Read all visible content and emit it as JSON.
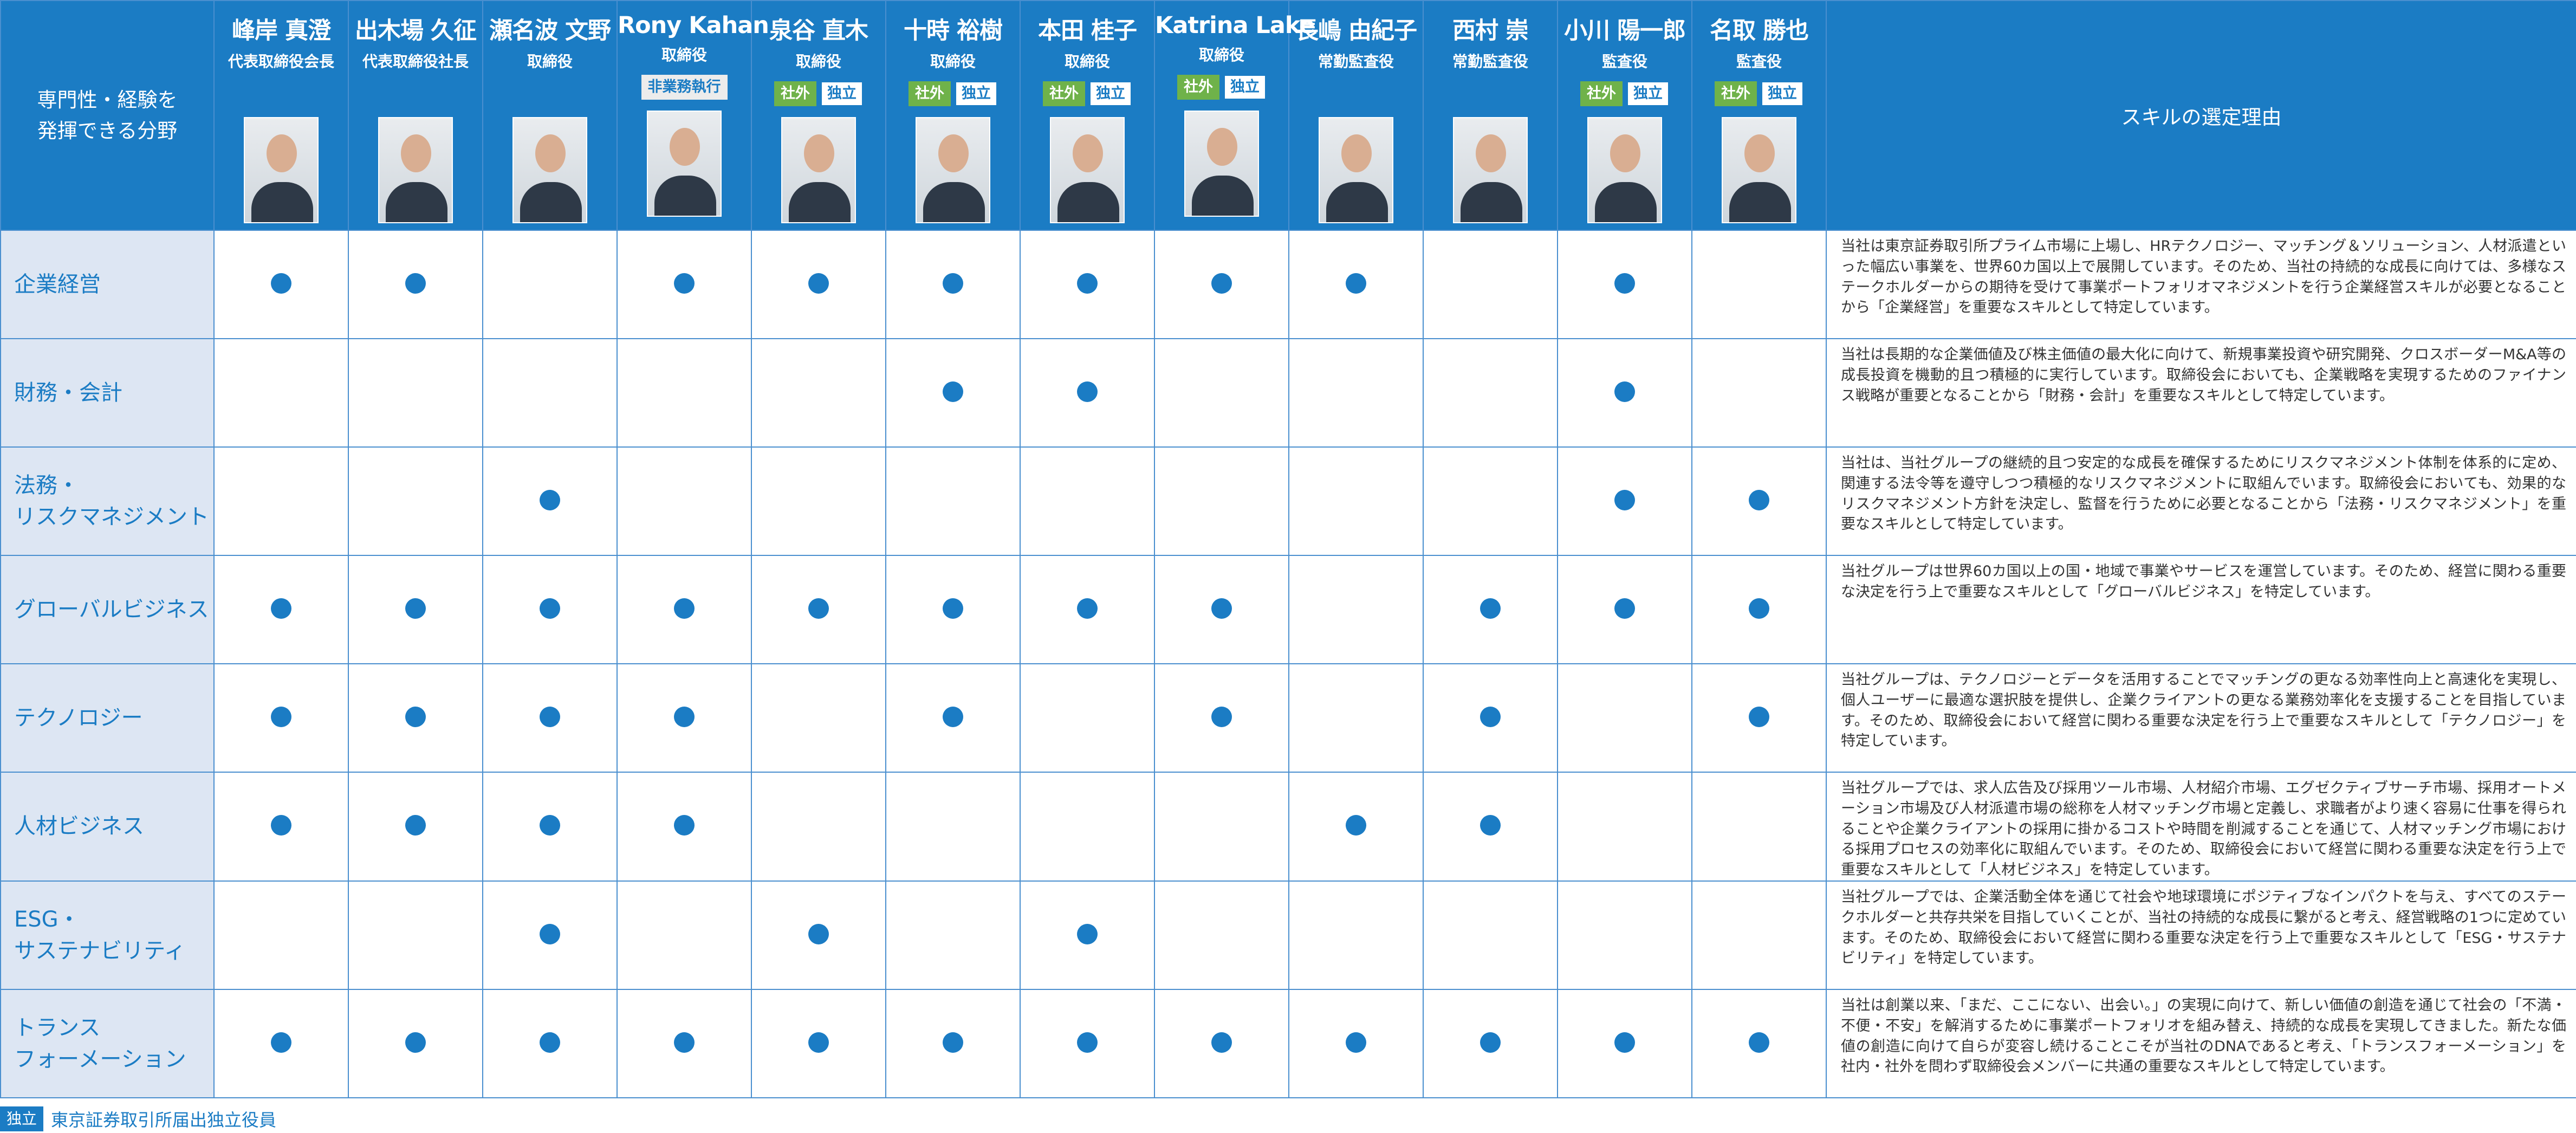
{
  "corner_header": "専門性・経験を\n発揮できる分野",
  "reason_header": "スキルの選定理由",
  "badge_labels": {
    "outside": "社外",
    "independent": "独立",
    "non_executive": "非業務執行"
  },
  "members": [
    {
      "name": "峰岸 真澄",
      "role": "代表取締役会長",
      "badges": []
    },
    {
      "name": "出木場 久征",
      "role": "代表取締役社長",
      "badges": []
    },
    {
      "name": "瀬名波 文野",
      "role": "取締役",
      "badges": []
    },
    {
      "name": "Rony Kahan",
      "role": "取締役",
      "badges": [
        "non_executive"
      ]
    },
    {
      "name": "泉谷 直木",
      "role": "取締役",
      "badges": [
        "outside",
        "independent"
      ]
    },
    {
      "name": "十時 裕樹",
      "role": "取締役",
      "badges": [
        "outside",
        "independent"
      ]
    },
    {
      "name": "本田 桂子",
      "role": "取締役",
      "badges": [
        "outside",
        "independent"
      ]
    },
    {
      "name": "Katrina Lake",
      "role": "取締役",
      "badges": [
        "outside",
        "independent"
      ]
    },
    {
      "name": "長嶋 由紀子",
      "role": "常勤監査役",
      "badges": []
    },
    {
      "name": "西村 崇",
      "role": "常勤監査役",
      "badges": []
    },
    {
      "name": "小川 陽一郎",
      "role": "監査役",
      "badges": [
        "outside",
        "independent"
      ]
    },
    {
      "name": "名取 勝也",
      "role": "監査役",
      "badges": [
        "outside",
        "independent"
      ]
    }
  ],
  "skills": [
    {
      "label": "企業経営",
      "marks": [
        1,
        1,
        0,
        1,
        1,
        1,
        1,
        1,
        1,
        0,
        1,
        0
      ],
      "reason": "当社は東京証券取引所プライム市場に上場し、HRテクノロジー、マッチング＆ソリューション、人材派遣といった幅広い事業を、世界60カ国以上で展開しています。そのため、当社の持続的な成長に向けては、多様なステークホルダーからの期待を受けて事業ポートフォリオマネジメントを行う企業経営スキルが必要となることから「企業経営」を重要なスキルとして特定しています。"
    },
    {
      "label": "財務・会計",
      "marks": [
        0,
        0,
        0,
        0,
        0,
        1,
        1,
        0,
        0,
        0,
        1,
        0
      ],
      "reason": "当社は長期的な企業価値及び株主価値の最大化に向けて、新規事業投資や研究開発、クロスボーダーM&A等の成長投資を機動的且つ積極的に実行しています。取締役会においても、企業戦略を実現するためのファイナンス戦略が重要となることから「財務・会計」を重要なスキルとして特定しています。"
    },
    {
      "label": "法務・\nリスクマネジメント",
      "marks": [
        0,
        0,
        1,
        0,
        0,
        0,
        0,
        0,
        0,
        0,
        1,
        1
      ],
      "reason": "当社は、当社グループの継続的且つ安定的な成長を確保するためにリスクマネジメント体制を体系的に定め、関連する法令等を遵守しつつ積極的なリスクマネジメントに取組んでいます。取締役会においても、効果的なリスクマネジメント方針を決定し、監督を行うために必要となることから「法務・リスクマネジメント」を重要なスキルとして特定しています。"
    },
    {
      "label": "グローバルビジネス",
      "marks": [
        1,
        1,
        1,
        1,
        1,
        1,
        1,
        1,
        0,
        1,
        1,
        1
      ],
      "reason": "当社グループは世界60カ国以上の国・地域で事業やサービスを運営しています。そのため、経営に関わる重要な決定を行う上で重要なスキルとして「グローバルビジネス」を特定しています。"
    },
    {
      "label": "テクノロジー",
      "marks": [
        1,
        1,
        1,
        1,
        0,
        1,
        0,
        1,
        0,
        1,
        0,
        1
      ],
      "reason": "当社グループは、テクノロジーとデータを活用することでマッチングの更なる効率性向上と高速化を実現し、個人ユーザーに最適な選択肢を提供し、企業クライアントの更なる業務効率化を支援することを目指しています。そのため、取締役会において経営に関わる重要な決定を行う上で重要なスキルとして「テクノロジー」を特定しています。"
    },
    {
      "label": "人材ビジネス",
      "marks": [
        1,
        1,
        1,
        1,
        0,
        0,
        0,
        0,
        1,
        1,
        0,
        0
      ],
      "reason": "当社グループでは、求人広告及び採用ツール市場、人材紹介市場、エグゼクティブサーチ市場、採用オートメーション市場及び人材派遣市場の総称を人材マッチング市場と定義し、求職者がより速く容易に仕事を得られることや企業クライアントの採用に掛かるコストや時間を削減することを通じて、人材マッチング市場における採用プロセスの効率化に取組んでいます。そのため、取締役会において経営に関わる重要な決定を行う上で重要なスキルとして「人材ビジネス」を特定しています。"
    },
    {
      "label": "ESG・\nサステナビリティ",
      "marks": [
        0,
        0,
        1,
        0,
        1,
        0,
        1,
        0,
        0,
        0,
        0,
        0
      ],
      "reason": "当社グループでは、企業活動全体を通じて社会や地球環境にポジティブなインパクトを与え、すべてのステークホルダーと共存共栄を目指していくことが、当社の持続的な成長に繋がると考え、経営戦略の1つに定めています。そのため、取締役会において経営に関わる重要な決定を行う上で重要なスキルとして「ESG・サステナビリティ」を特定しています。"
    },
    {
      "label": "トランス\nフォーメーション",
      "marks": [
        1,
        1,
        1,
        1,
        1,
        1,
        1,
        1,
        1,
        1,
        1,
        1
      ],
      "reason": "当社は創業以来、「まだ、ここにない、出会い。」の実現に向けて、新しい価値の創造を通じて社会の「不満・不便・不安」を解消するために事業ポートフォリオを組み替え、持続的な成長を実現してきました。新たな価値の創造に向けて自らが変容し続けることこそが当社のDNAであると考え、「トランスフォーメーション」を社内・社外を問わず取締役会メンバーに共通の重要なスキルとして特定しています。"
    }
  ],
  "legend": {
    "badge": "独立",
    "text": "東京証券取引所届出独立役員"
  },
  "colors": {
    "header_blue": "#1b7cc4",
    "skill_bg": "#dde6f3",
    "outside_green": "#6fb24a",
    "dot_blue": "#1b7cc4"
  }
}
